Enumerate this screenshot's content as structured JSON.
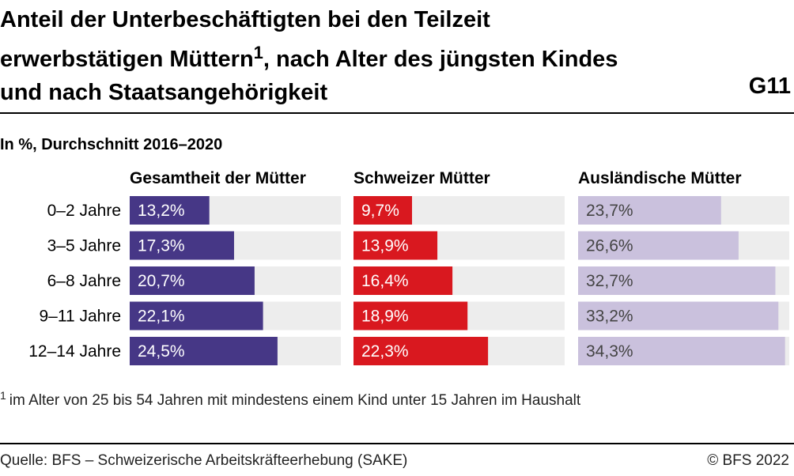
{
  "header": {
    "title": "Anteil der Unterbeschäftigten bei den Teilzeit erwerbstätigen Müttern",
    "title_sup": "1",
    "title_rest": ", nach Alter des jüngsten Kindes und nach Staatsangehörigkeit",
    "chart_id": "G11"
  },
  "subtitle": "In %, Durchschnitt 2016–2020",
  "footnote": {
    "marker": "1",
    "text": "im Alter von 25 bis 54 Jahren mit mindestens einem Kind unter 15 Jahren im Haushalt"
  },
  "footer": {
    "source": "Quelle: BFS – Schweizerische Arbeitskräfteerhebung (SAKE)",
    "copyright": "© BFS 2022"
  },
  "chart_data": {
    "type": "bar",
    "orientation": "horizontal",
    "categories": [
      "0–2 Jahre",
      "3–5 Jahre",
      "6–8 Jahre",
      "9–11 Jahre",
      "12–14 Jahre"
    ],
    "xlim": [
      0,
      35
    ],
    "grid": false,
    "legend": "none",
    "series": [
      {
        "name": "Gesamtheit der Mütter",
        "color": "#463786",
        "label_color": "#ffffff",
        "values": [
          13.2,
          17.3,
          20.7,
          22.1,
          24.5
        ],
        "labels": [
          "13,2%",
          "17,3%",
          "20,7%",
          "22,1%",
          "24,5%"
        ]
      },
      {
        "name": "Schweizer Mütter",
        "color": "#d9181f",
        "label_color": "#ffffff",
        "values": [
          9.7,
          13.9,
          16.4,
          18.9,
          22.3
        ],
        "labels": [
          "9,7%",
          "13,9%",
          "16,4%",
          "18,9%",
          "22,3%"
        ]
      },
      {
        "name": "Ausländische Mütter",
        "color": "#cac1dd",
        "label_color": "#444444",
        "values": [
          23.7,
          26.6,
          32.7,
          33.2,
          34.3
        ],
        "labels": [
          "23,7%",
          "26,6%",
          "32,7%",
          "33,2%",
          "34,3%"
        ]
      }
    ],
    "background_color": "#ededed"
  }
}
